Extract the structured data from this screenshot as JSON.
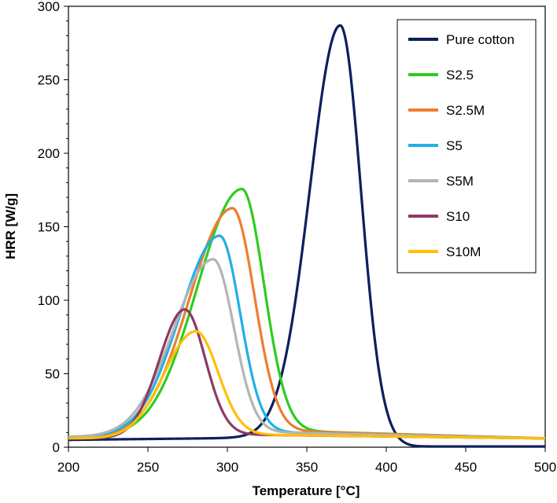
{
  "chart_data": {
    "type": "line",
    "title": "",
    "xlabel": "Temperature [°C]",
    "ylabel": "HRR [W/g]",
    "xlim": [
      200,
      500
    ],
    "ylim": [
      0,
      300
    ],
    "xticks": [
      200,
      250,
      300,
      350,
      400,
      450,
      500
    ],
    "yticks": [
      0,
      50,
      100,
      150,
      200,
      250,
      300
    ],
    "grid": false,
    "legend_position": "top-right",
    "series": [
      {
        "name": "Pure cotton",
        "color": "#0d1f5c",
        "peak_x": 371,
        "peak_y": 280,
        "sigma_left": 19,
        "sigma_right": 13,
        "base_start": 5,
        "base_peak": 7,
        "base_end": 0.5,
        "tail_start": 420
      },
      {
        "name": "S2.5",
        "color": "#2ecc1f",
        "peak_x": 309,
        "peak_y": 165,
        "sigma_left": 28,
        "sigma_right": 14,
        "base_start": 7,
        "base_peak": 12,
        "base_end": 6
      },
      {
        "name": "S2.5M",
        "color": "#ed7d31",
        "peak_x": 303,
        "peak_y": 152,
        "sigma_left": 27,
        "sigma_right": 14,
        "base_start": 7,
        "base_peak": 12,
        "base_end": 6
      },
      {
        "name": "S5",
        "color": "#1fb1e6",
        "peak_x": 295,
        "peak_y": 134,
        "sigma_left": 25,
        "sigma_right": 13,
        "base_start": 7,
        "base_peak": 11,
        "base_end": 6
      },
      {
        "name": "S5M",
        "color": "#b4b4b4",
        "peak_x": 291,
        "peak_y": 118,
        "sigma_left": 25,
        "sigma_right": 13,
        "base_start": 7,
        "base_peak": 11,
        "base_end": 6
      },
      {
        "name": "S10",
        "color": "#8e3a64",
        "peak_x": 273,
        "peak_y": 86,
        "sigma_left": 16,
        "sigma_right": 13,
        "base_start": 6,
        "base_peak": 9,
        "base_end": 6
      },
      {
        "name": "S10M",
        "color": "#ffc000",
        "peak_x": 280,
        "peak_y": 71,
        "sigma_left": 20,
        "sigma_right": 14,
        "base_start": 6,
        "base_peak": 9,
        "base_end": 6
      }
    ]
  }
}
